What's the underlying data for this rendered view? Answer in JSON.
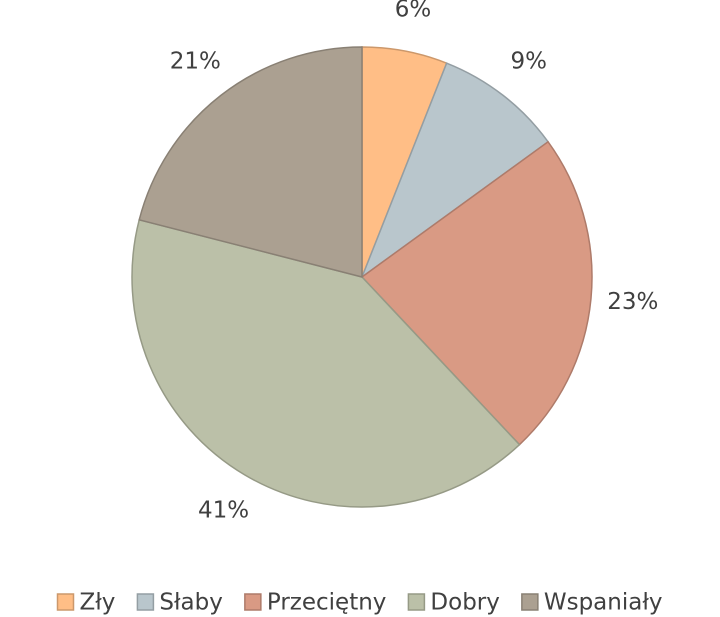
{
  "chart_data": {
    "type": "pie",
    "categories": [
      "Zły",
      "Słaby",
      "Przeciętny",
      "Dobry",
      "Wspaniały"
    ],
    "values": [
      6,
      9,
      23,
      41,
      21
    ],
    "value_labels": [
      "6%",
      "9%",
      "23%",
      "41%",
      "21%"
    ],
    "colors": [
      "#ffbe86",
      "#b9c6cc",
      "#d99a84",
      "#bbc0a8",
      "#aba091"
    ],
    "legend": "bottom"
  }
}
